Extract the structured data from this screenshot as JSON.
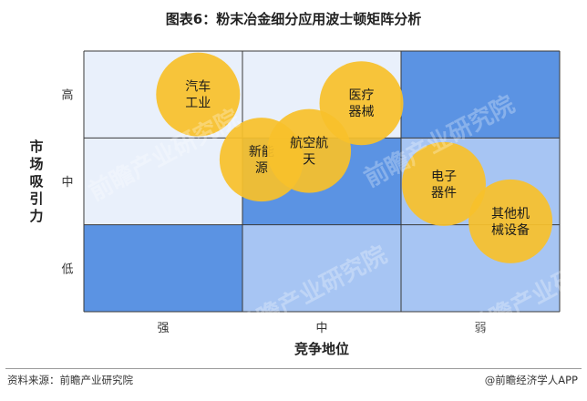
{
  "title": "图表6：粉末冶金细分应用波士顿矩阵分析",
  "chart_data": {
    "type": "bubble-matrix",
    "xlabel": "竞争地位",
    "ylabel": "市场吸引力",
    "x_levels": [
      "强",
      "中",
      "弱"
    ],
    "y_levels": [
      "高",
      "中",
      "低"
    ],
    "cell_colors": [
      [
        "#e9f0fb",
        "#e9f0fb",
        "#5b93e3"
      ],
      [
        "#e9f0fb",
        "#5b93e3",
        "#a7c5f3"
      ],
      [
        "#5b93e3",
        "#a7c5f3",
        "#a7c5f3"
      ]
    ],
    "bubble_color": "#f7c12b",
    "bubbles": [
      {
        "lines": [
          "汽车",
          "工业"
        ],
        "x": 0.72,
        "y": 2.5
      },
      {
        "lines": [
          "新能",
          "源"
        ],
        "x": 1.12,
        "y": 1.75
      },
      {
        "lines": [
          "航空航",
          "天"
        ],
        "x": 1.42,
        "y": 1.85
      },
      {
        "lines": [
          "医疗",
          "器械"
        ],
        "x": 1.75,
        "y": 2.4
      },
      {
        "lines": [
          "电子",
          "器件"
        ],
        "x": 2.27,
        "y": 1.47
      },
      {
        "lines": [
          "其他机",
          "械设备"
        ],
        "x": 2.69,
        "y": 1.04
      }
    ]
  },
  "footer": {
    "source": "资料来源：前瞻产业研究院",
    "brand": "@前瞻经济学人APP"
  },
  "watermark": "前瞻产业研究院"
}
